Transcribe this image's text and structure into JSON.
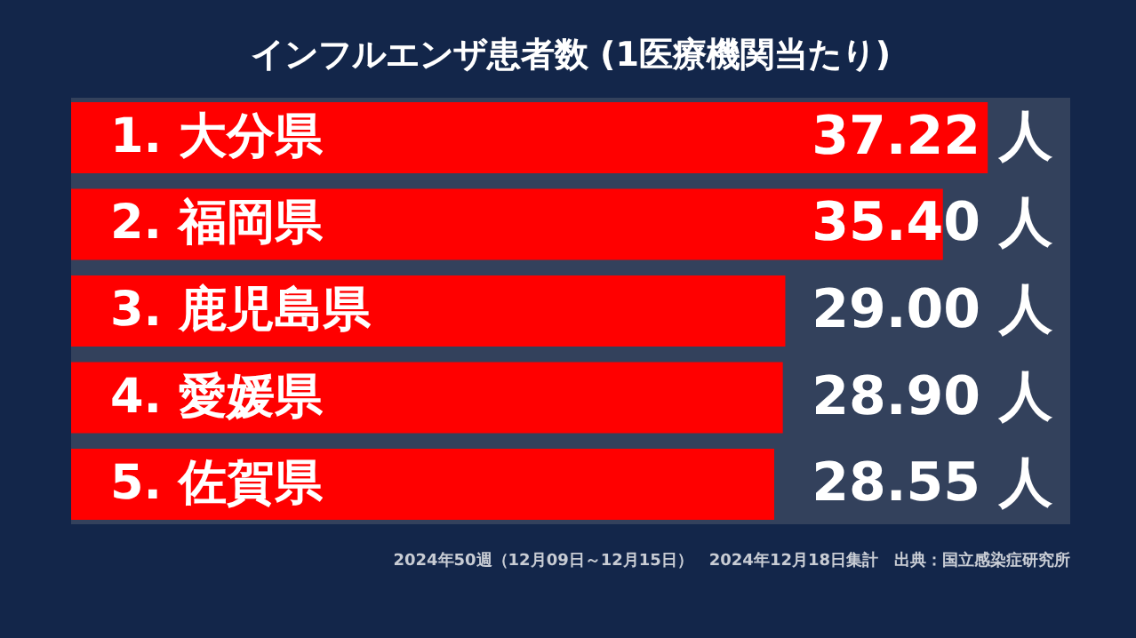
{
  "chart_data": {
    "type": "bar",
    "orientation": "horizontal",
    "title": "インフルエンザ患者数 (1医療機関当たり)",
    "categories": [
      "1. 大分県",
      "2. 福岡県",
      "3. 鹿児島県",
      "4. 愛媛県",
      "5. 佐賀県"
    ],
    "values": [
      37.22,
      35.4,
      29.0,
      28.9,
      28.55
    ],
    "value_labels": [
      "37.22 人",
      "35.40 人",
      "29.00 人",
      "28.90 人",
      "28.55 人"
    ],
    "color": "#ff0000",
    "annotations": [
      "2024年50週（12月09日～12月15日）　2024年12月18日集計　出典：国立感染症研究所"
    ]
  }
}
